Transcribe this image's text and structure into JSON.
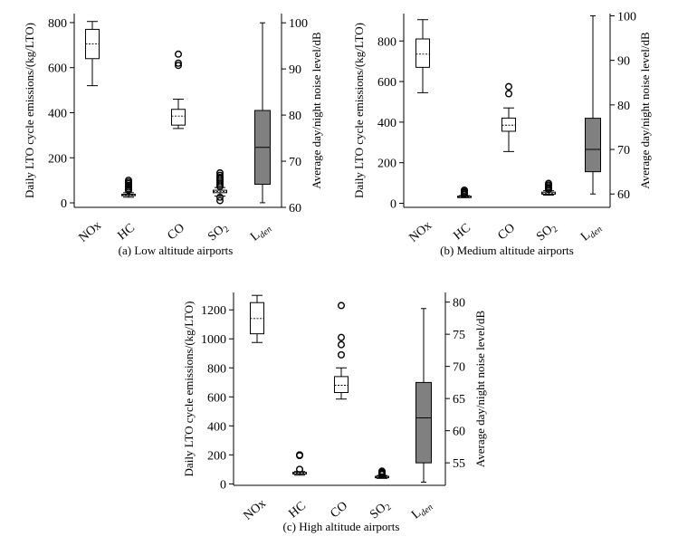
{
  "chart_data": [
    {
      "type": "box",
      "caption": "(a) Low altitude airports",
      "ylabel_left": "Daily LTO cycle emissions/(kg/LTO)",
      "ylabel_right": "Average day/night noise level/dB",
      "left_ticks": [
        0,
        200,
        400,
        600,
        800
      ],
      "left_ylim": [
        -20,
        840
      ],
      "right_ticks": [
        60,
        70,
        80,
        90,
        100
      ],
      "right_ylim": [
        60,
        102
      ],
      "categories": [
        {
          "main": "NOx",
          "sub": ""
        },
        {
          "main": "HC",
          "sub": ""
        },
        {
          "main": "CO",
          "sub": ""
        },
        {
          "main": "SO",
          "sub": "2"
        },
        {
          "main": "L",
          "sub": "den"
        }
      ],
      "boxes": [
        {
          "axis": "left",
          "min": 520,
          "q1": 640,
          "median": 705,
          "q3": 770,
          "max": 805,
          "outliers": [],
          "fill": "#ffffff"
        },
        {
          "axis": "left",
          "min": 25,
          "q1": 32,
          "median": 35,
          "q3": 38,
          "max": 45,
          "outliers": [
            55,
            62,
            70,
            77,
            85,
            92,
            100
          ],
          "fill": "#ffffff"
        },
        {
          "axis": "left",
          "min": 330,
          "q1": 345,
          "median": 385,
          "q3": 415,
          "max": 460,
          "outliers": [
            610,
            620,
            660
          ],
          "fill": "#ffffff"
        },
        {
          "axis": "left",
          "min": 30,
          "q1": 45,
          "median": 50,
          "q3": 56,
          "max": 68,
          "outliers": [
            10,
            25,
            72,
            80,
            88,
            97,
            105,
            113,
            122,
            133
          ],
          "fill": "#ffffff"
        },
        {
          "axis": "right",
          "min": 61,
          "q1": 65,
          "median": 73,
          "q3": 81,
          "max": 100,
          "outliers": [],
          "fill": "#808080"
        }
      ]
    },
    {
      "type": "box",
      "caption": "(b) Medium altitude airports",
      "ylabel_left": "Daily LTO cycle emissions/(kg/LTO)",
      "ylabel_right": "Average day/night noise level/dB",
      "left_ticks": [
        0,
        200,
        400,
        600,
        800
      ],
      "left_ylim": [
        -20,
        935
      ],
      "right_ticks": [
        60,
        70,
        80,
        90,
        100
      ],
      "right_ylim": [
        57,
        100.5
      ],
      "categories": [
        {
          "main": "NOx",
          "sub": ""
        },
        {
          "main": "HC",
          "sub": ""
        },
        {
          "main": "CO",
          "sub": ""
        },
        {
          "main": "SO",
          "sub": "2"
        },
        {
          "main": "L",
          "sub": "den"
        }
      ],
      "boxes": [
        {
          "axis": "left",
          "min": 545,
          "q1": 670,
          "median": 735,
          "q3": 810,
          "max": 905,
          "outliers": [],
          "fill": "#ffffff"
        },
        {
          "axis": "left",
          "min": 28,
          "q1": 30,
          "median": 32,
          "q3": 35,
          "max": 38,
          "outliers": [
            45,
            52,
            58,
            65
          ],
          "fill": "#ffffff"
        },
        {
          "axis": "left",
          "min": 255,
          "q1": 355,
          "median": 385,
          "q3": 420,
          "max": 470,
          "outliers": [
            540,
            575
          ],
          "fill": "#ffffff"
        },
        {
          "axis": "left",
          "min": 40,
          "q1": 45,
          "median": 48,
          "q3": 55,
          "max": 62,
          "outliers": [
            68,
            75,
            82,
            90,
            98
          ],
          "fill": "#ffffff"
        },
        {
          "axis": "right",
          "min": 60,
          "q1": 65,
          "median": 70,
          "q3": 77,
          "max": 100,
          "outliers": [],
          "fill": "#808080"
        }
      ]
    },
    {
      "type": "box",
      "caption": "(c) High altitude airports",
      "ylabel_left": "Daily LTO cycle emissions/(kg/LTO)",
      "ylabel_right": "Average day/night noise level/dB",
      "left_ticks": [
        0,
        200,
        400,
        600,
        800,
        1000,
        1200
      ],
      "left_ylim": [
        -10,
        1320
      ],
      "right_ticks": [
        55,
        60,
        65,
        70,
        75,
        80
      ],
      "right_ylim": [
        51.5,
        81.5
      ],
      "categories": [
        {
          "main": "NOx",
          "sub": ""
        },
        {
          "main": "HC",
          "sub": ""
        },
        {
          "main": "CO",
          "sub": ""
        },
        {
          "main": "SO",
          "sub": "2"
        },
        {
          "main": "L",
          "sub": "den"
        }
      ],
      "boxes": [
        {
          "axis": "left",
          "min": 975,
          "q1": 1035,
          "median": 1140,
          "q3": 1250,
          "max": 1300,
          "outliers": [],
          "fill": "#ffffff"
        },
        {
          "axis": "left",
          "min": 60,
          "q1": 68,
          "median": 73,
          "q3": 80,
          "max": 85,
          "outliers": [
            100,
            195,
            200
          ],
          "fill": "#ffffff"
        },
        {
          "axis": "left",
          "min": 585,
          "q1": 630,
          "median": 680,
          "q3": 740,
          "max": 800,
          "outliers": [
            890,
            960,
            1010,
            1230
          ],
          "fill": "#ffffff"
        },
        {
          "axis": "left",
          "min": 38,
          "q1": 42,
          "median": 46,
          "q3": 52,
          "max": 58,
          "outliers": [
            65,
            72,
            80,
            88
          ],
          "fill": "#ffffff"
        },
        {
          "axis": "right",
          "min": 52,
          "q1": 55,
          "median": 62,
          "q3": 67.5,
          "max": 79,
          "outliers": [],
          "fill": "#808080"
        }
      ]
    }
  ]
}
